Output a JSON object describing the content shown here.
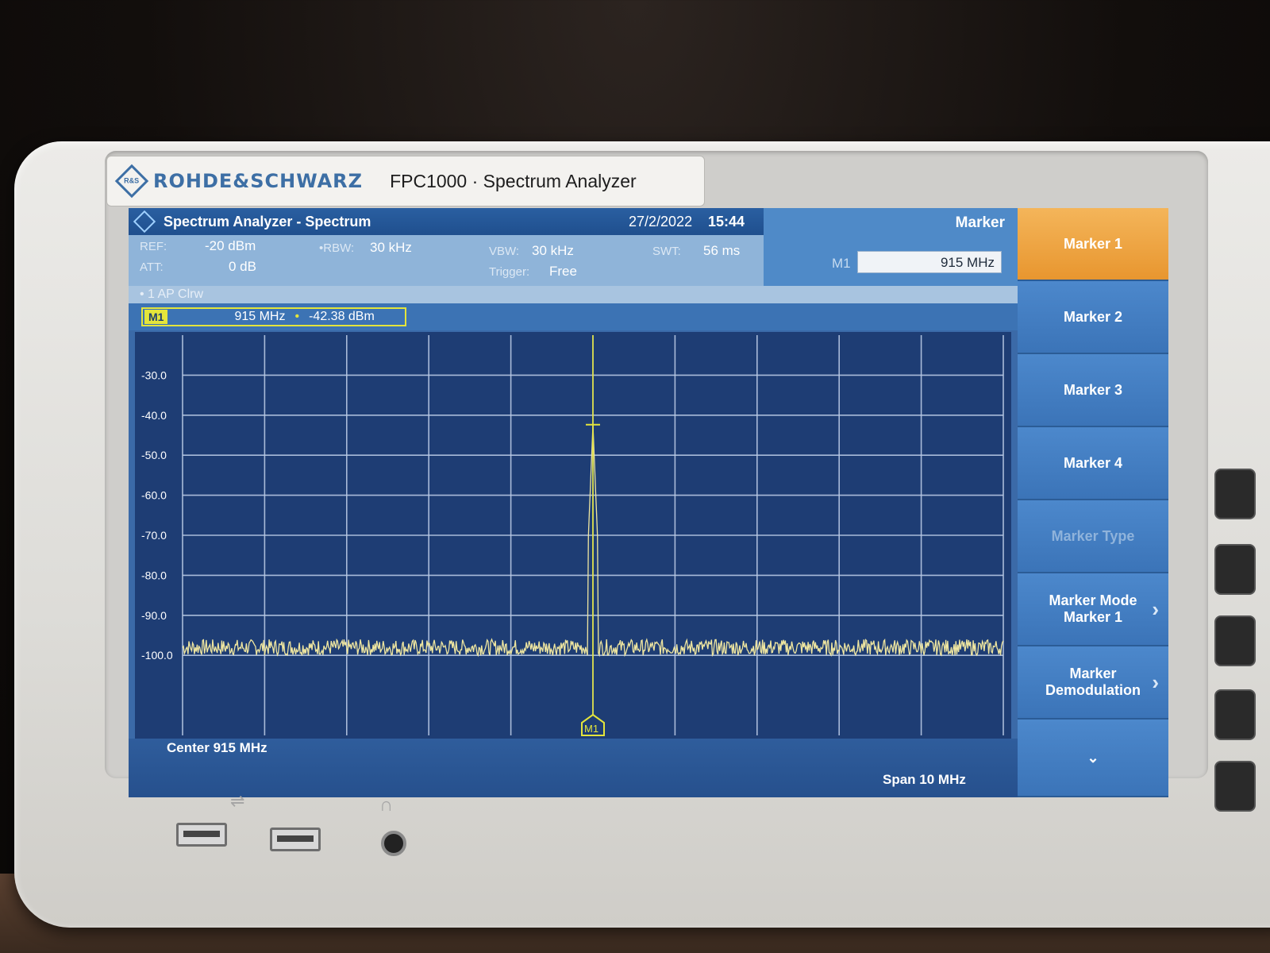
{
  "brand": {
    "name": "ROHDE&SCHWARZ",
    "model": "FPC1000 · Spectrum Analyzer",
    "logo_text": "R&S"
  },
  "titlebar": {
    "title": "Spectrum Analyzer - Spectrum",
    "date": "27/2/2022",
    "time": "15:44"
  },
  "params": {
    "ref_label": "REF:",
    "ref_value": "-20 dBm",
    "att_label": "ATT:",
    "att_value": "0 dB",
    "rbw_label": "•RBW:",
    "rbw_value": "30 kHz",
    "vbw_label": "VBW:",
    "vbw_value": "30 kHz",
    "trigger_label": "Trigger:",
    "trigger_value": "Free",
    "swt_label": "SWT:",
    "swt_value": "56 ms"
  },
  "trace": {
    "label": "• 1 AP Clrw"
  },
  "marker_readout": {
    "tag": "M1",
    "freq": "915 MHz",
    "sep": "•",
    "level": "-42.38 dBm"
  },
  "menu": {
    "title": "Marker",
    "m1_label": "M1",
    "m1_value": "915 MHz"
  },
  "softkeys": [
    {
      "label": "Marker 1",
      "state": "active"
    },
    {
      "label": "Marker 2",
      "state": "normal"
    },
    {
      "label": "Marker 3",
      "state": "normal"
    },
    {
      "label": "Marker 4",
      "state": "normal"
    },
    {
      "label": "Marker Type",
      "state": "disabled"
    },
    {
      "label": "Marker Mode\nMarker 1",
      "state": "submenu"
    },
    {
      "label": "Marker\nDemodulation",
      "state": "submenu"
    },
    {
      "label": "⌄",
      "state": "more"
    }
  ],
  "plot": {
    "y_ticks": [
      "-30.0",
      "-40.0",
      "-50.0",
      "-60.0",
      "-70.0",
      "-80.0",
      "-90.0",
      "-100.0"
    ],
    "center_label": "Center 915 MHz",
    "span_label": "Span 10 MHz",
    "marker_label": "M1"
  },
  "chart_data": {
    "type": "line",
    "ylabel": "",
    "xlabel": "",
    "ylim": [
      -20,
      -120
    ],
    "y_unit": "dBm",
    "x_center_mhz": 915,
    "x_span_mhz": 10,
    "x_range_mhz": [
      910,
      920
    ],
    "peak": {
      "x_mhz": 915,
      "y_dbm": -42.38
    },
    "noise_floor_dbm": [
      -100,
      -110
    ],
    "grid": true,
    "trace_color": "#efe6a0"
  },
  "colors": {
    "accent": "#e8962f",
    "screen": "#3b6aa8",
    "plot": "#1e3d74",
    "marker": "#e4e53b",
    "trace": "#efe6a0"
  }
}
